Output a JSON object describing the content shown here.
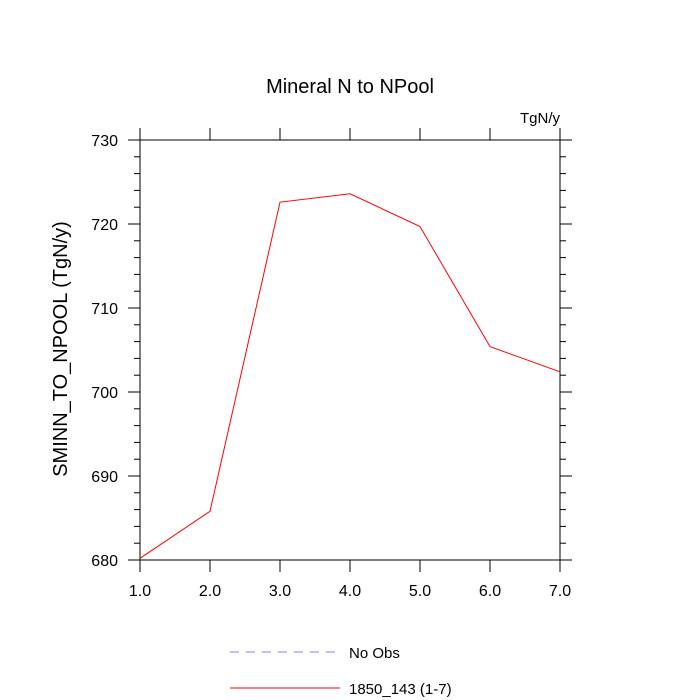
{
  "chart_data": {
    "type": "line",
    "title": "Mineral N to NPool",
    "units_label": "TgN/y",
    "ylabel": "SMINN_TO_NPOOL  (TgN/y)",
    "xlabel": "",
    "xlim": [
      1.0,
      7.0
    ],
    "ylim": [
      680,
      730
    ],
    "x_ticks": [
      1.0,
      2.0,
      3.0,
      4.0,
      5.0,
      6.0,
      7.0
    ],
    "x_tick_labels": [
      "1.0",
      "2.0",
      "3.0",
      "4.0",
      "5.0",
      "6.0",
      "7.0"
    ],
    "y_ticks": [
      680,
      690,
      700,
      710,
      720,
      730
    ],
    "y_tick_labels": [
      "680",
      "690",
      "700",
      "710",
      "720",
      "730"
    ],
    "grid": false,
    "legend_position": "bottom",
    "series": [
      {
        "name": "1850_143 (1-7)",
        "color": "#ff0000",
        "style": "solid",
        "x": [
          1.0,
          2.0,
          3.0,
          4.0,
          5.0,
          6.0,
          7.0
        ],
        "y": [
          680.2,
          685.8,
          722.6,
          723.6,
          719.7,
          705.4,
          702.4
        ]
      }
    ],
    "legend": [
      {
        "label": "No Obs",
        "color": "#8080ff",
        "style": "dashed"
      },
      {
        "label": "1850_143 (1-7)",
        "color": "#ff0000",
        "style": "solid"
      }
    ]
  }
}
